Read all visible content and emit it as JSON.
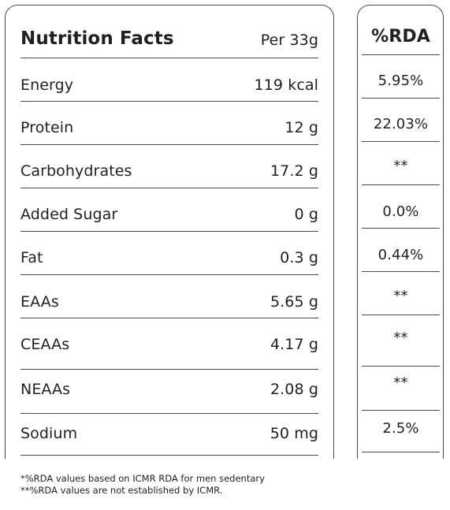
{
  "table": {
    "title": "Nutrition Facts",
    "serving": "Per 33g",
    "rda_header": "%RDA",
    "rows": [
      {
        "label": "Energy",
        "value": "119 kcal",
        "rda": "5.95%"
      },
      {
        "label": "Protein",
        "value": "12 g",
        "rda": "22.03%"
      },
      {
        "label": "Carbohydrates",
        "value": "17.2 g",
        "rda": "**"
      },
      {
        "label": "Added Sugar",
        "value": "0 g",
        "rda": "0.0%"
      },
      {
        "label": "Fat",
        "value": "0.3 g",
        "rda": "0.44%"
      },
      {
        "label": "EAAs",
        "value": "5.65 g",
        "rda": "**"
      },
      {
        "label": "CEAAs",
        "value": "4.17 g",
        "rda": "**"
      },
      {
        "label": "NEAAs",
        "value": "2.08 g",
        "rda": "**"
      },
      {
        "label": "Sodium",
        "value": "50 mg",
        "rda": "2.5%"
      }
    ]
  },
  "footnotes": {
    "note1": "*%RDA values based on ICMR RDA for men sedentary",
    "note2": "**%RDA values are not established by ICMR."
  }
}
